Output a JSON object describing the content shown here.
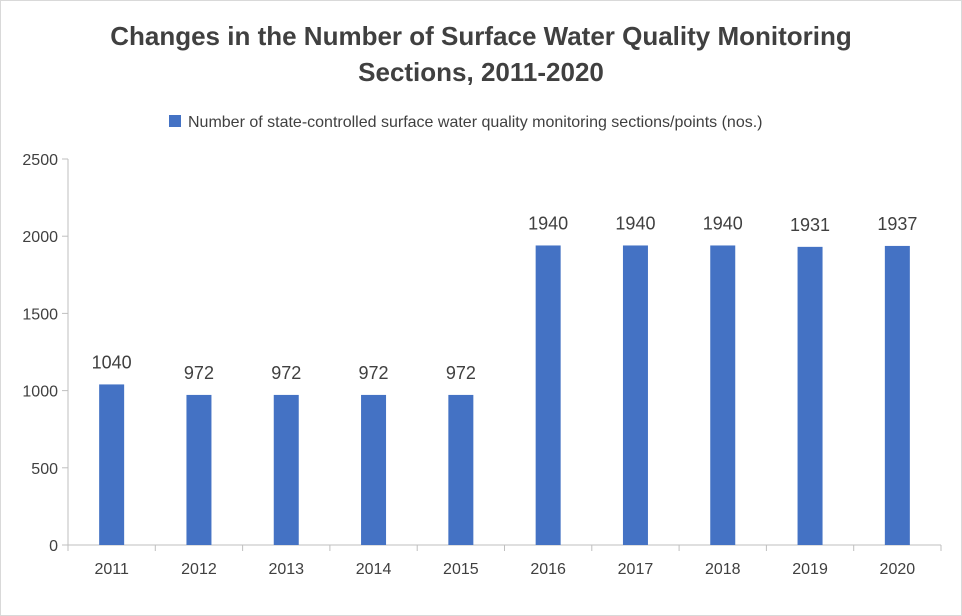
{
  "chart_data": {
    "type": "bar",
    "title_lines": [
      "Changes in the Number of Surface Water Quality Monitoring",
      "Sections, 2011-2020"
    ],
    "legend": {
      "label": "Number of state-controlled surface water quality monitoring sections/points (nos.)",
      "placement": "top"
    },
    "categories": [
      "2011",
      "2012",
      "2013",
      "2014",
      "2015",
      "2016",
      "2017",
      "2018",
      "2019",
      "2020"
    ],
    "series": [
      {
        "name": "Number of state-controlled surface water quality monitoring sections/points (nos.)",
        "values": [
          1040,
          972,
          972,
          972,
          972,
          1940,
          1940,
          1940,
          1931,
          1937
        ],
        "color": "#4472c4"
      }
    ],
    "y_ticks": [
      0,
      500,
      1000,
      1500,
      2000,
      2500
    ],
    "ylim": [
      0,
      2500
    ],
    "grid": false,
    "data_labels": true
  }
}
